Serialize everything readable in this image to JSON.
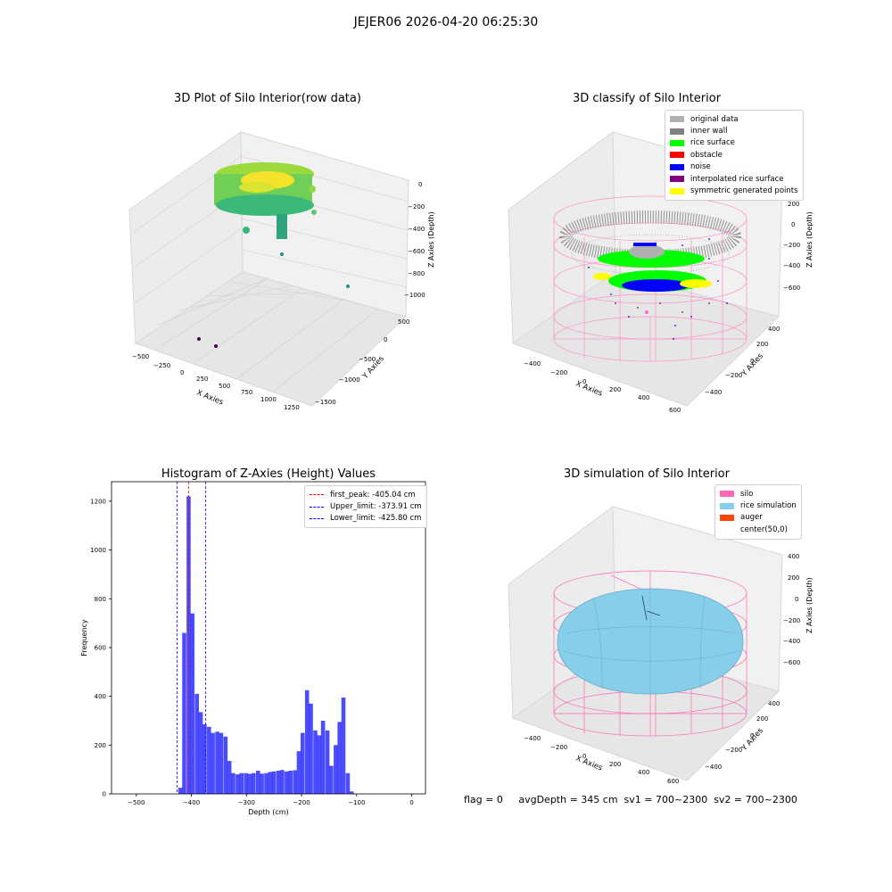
{
  "suptitle": "JEJER06 2026-04-20 06:25:30",
  "footer": "flag = 0     avgDepth = 345 cm  sv1 = 700~2300  sv2 = 700~2300",
  "panels": {
    "raw": {
      "title": "3D Plot of Silo Interior(row data)",
      "xlabel": "X Axies",
      "ylabel": "Y Axies",
      "zlabel": "Z Axies (Depth)",
      "xticks": [
        "−500",
        "−250",
        "0",
        "250",
        "500",
        "750",
        "1000",
        "1250"
      ],
      "yticks": [
        "−1500",
        "−1000",
        "−500",
        "0",
        "500"
      ],
      "zticks": [
        "−1000",
        "−800",
        "−600",
        "−400",
        "−200",
        "0"
      ]
    },
    "classify": {
      "title": "3D classify of Silo Interior",
      "xlabel": "X Axies",
      "ylabel": "Y Axies",
      "zlabel": "Z Axies (Depth)",
      "xticks": [
        "−400",
        "−200",
        "0",
        "200",
        "400",
        "600"
      ],
      "yticks": [
        "−400",
        "−200",
        "0",
        "200",
        "400"
      ],
      "zticks": [
        "−600",
        "−400",
        "−200",
        "0",
        "200"
      ],
      "legend": [
        {
          "label": "original data",
          "color": "#b0b0b0"
        },
        {
          "label": "inner wall",
          "color": "#808080"
        },
        {
          "label": "rice surface",
          "color": "#00ff00"
        },
        {
          "label": "obstacle",
          "color": "#ff0000"
        },
        {
          "label": "noise",
          "color": "#0000ff"
        },
        {
          "label": "interpolated rice surface",
          "color": "#800080"
        },
        {
          "label": "symmetric generated points",
          "color": "#ffff00"
        }
      ]
    },
    "simulation": {
      "title": "3D simulation of Silo Interior",
      "xlabel": "X Axies",
      "ylabel": "Y Axies",
      "zlabel": "Z Axies (Depth)",
      "xticks": [
        "−400",
        "−200",
        "0",
        "200",
        "400",
        "600"
      ],
      "yticks": [
        "−400",
        "−200",
        "0",
        "200",
        "400"
      ],
      "zticks": [
        "−600",
        "−400",
        "−200",
        "0",
        "200",
        "400"
      ],
      "legend": [
        {
          "label": "silo",
          "color": "#ff69b4"
        },
        {
          "label": "rice simulation",
          "color": "#87ceeb"
        },
        {
          "label": "auger",
          "color": "#ff4500"
        },
        {
          "label": "center(50,0)",
          "color": ""
        }
      ]
    }
  },
  "chart_data": [
    {
      "type": "bar",
      "title": "Histogram of Z-Axies (Height) Values",
      "xlabel": "Depth (cm)",
      "ylabel": "Frequency",
      "xlim": [
        -545,
        25
      ],
      "ylim": [
        0,
        1280
      ],
      "xticks": [
        -500,
        -400,
        -300,
        -200,
        -100,
        0
      ],
      "yticks": [
        0,
        200,
        400,
        600,
        800,
        1000,
        1200
      ],
      "bar_color": "#0000ff",
      "bin_width": 7.4,
      "bins": [
        {
          "x": -420,
          "v": 25
        },
        {
          "x": -413,
          "v": 660
        },
        {
          "x": -405,
          "v": 1220
        },
        {
          "x": -398,
          "v": 740
        },
        {
          "x": -390,
          "v": 410
        },
        {
          "x": -383,
          "v": 335
        },
        {
          "x": -376,
          "v": 285
        },
        {
          "x": -368,
          "v": 275
        },
        {
          "x": -361,
          "v": 250
        },
        {
          "x": -353,
          "v": 255
        },
        {
          "x": -346,
          "v": 250
        },
        {
          "x": -338,
          "v": 235
        },
        {
          "x": -331,
          "v": 135
        },
        {
          "x": -324,
          "v": 85
        },
        {
          "x": -316,
          "v": 80
        },
        {
          "x": -309,
          "v": 85
        },
        {
          "x": -301,
          "v": 85
        },
        {
          "x": -294,
          "v": 82
        },
        {
          "x": -287,
          "v": 85
        },
        {
          "x": -279,
          "v": 95
        },
        {
          "x": -272,
          "v": 83
        },
        {
          "x": -264,
          "v": 85
        },
        {
          "x": -257,
          "v": 90
        },
        {
          "x": -250,
          "v": 92
        },
        {
          "x": -242,
          "v": 95
        },
        {
          "x": -235,
          "v": 98
        },
        {
          "x": -227,
          "v": 92
        },
        {
          "x": -220,
          "v": 95
        },
        {
          "x": -212,
          "v": 97
        },
        {
          "x": -205,
          "v": 175
        },
        {
          "x": -198,
          "v": 250
        },
        {
          "x": -190,
          "v": 425
        },
        {
          "x": -183,
          "v": 370
        },
        {
          "x": -175,
          "v": 260
        },
        {
          "x": -168,
          "v": 240
        },
        {
          "x": -161,
          "v": 300
        },
        {
          "x": -153,
          "v": 260
        },
        {
          "x": -146,
          "v": 115
        },
        {
          "x": -138,
          "v": 200
        },
        {
          "x": -131,
          "v": 295
        },
        {
          "x": -124,
          "v": 395
        },
        {
          "x": -116,
          "v": 85
        },
        {
          "x": -109,
          "v": 10
        }
      ],
      "vlines": [
        {
          "label": "first_peak: -405.04 cm",
          "x": -405.04,
          "color": "#ff0000"
        },
        {
          "label": "Upper_limit: -373.91 cm",
          "x": -373.91,
          "color": "#0000ff"
        },
        {
          "label": "Lower_limit: -425.80 cm",
          "x": -425.8,
          "color": "#0000ff"
        }
      ]
    }
  ]
}
